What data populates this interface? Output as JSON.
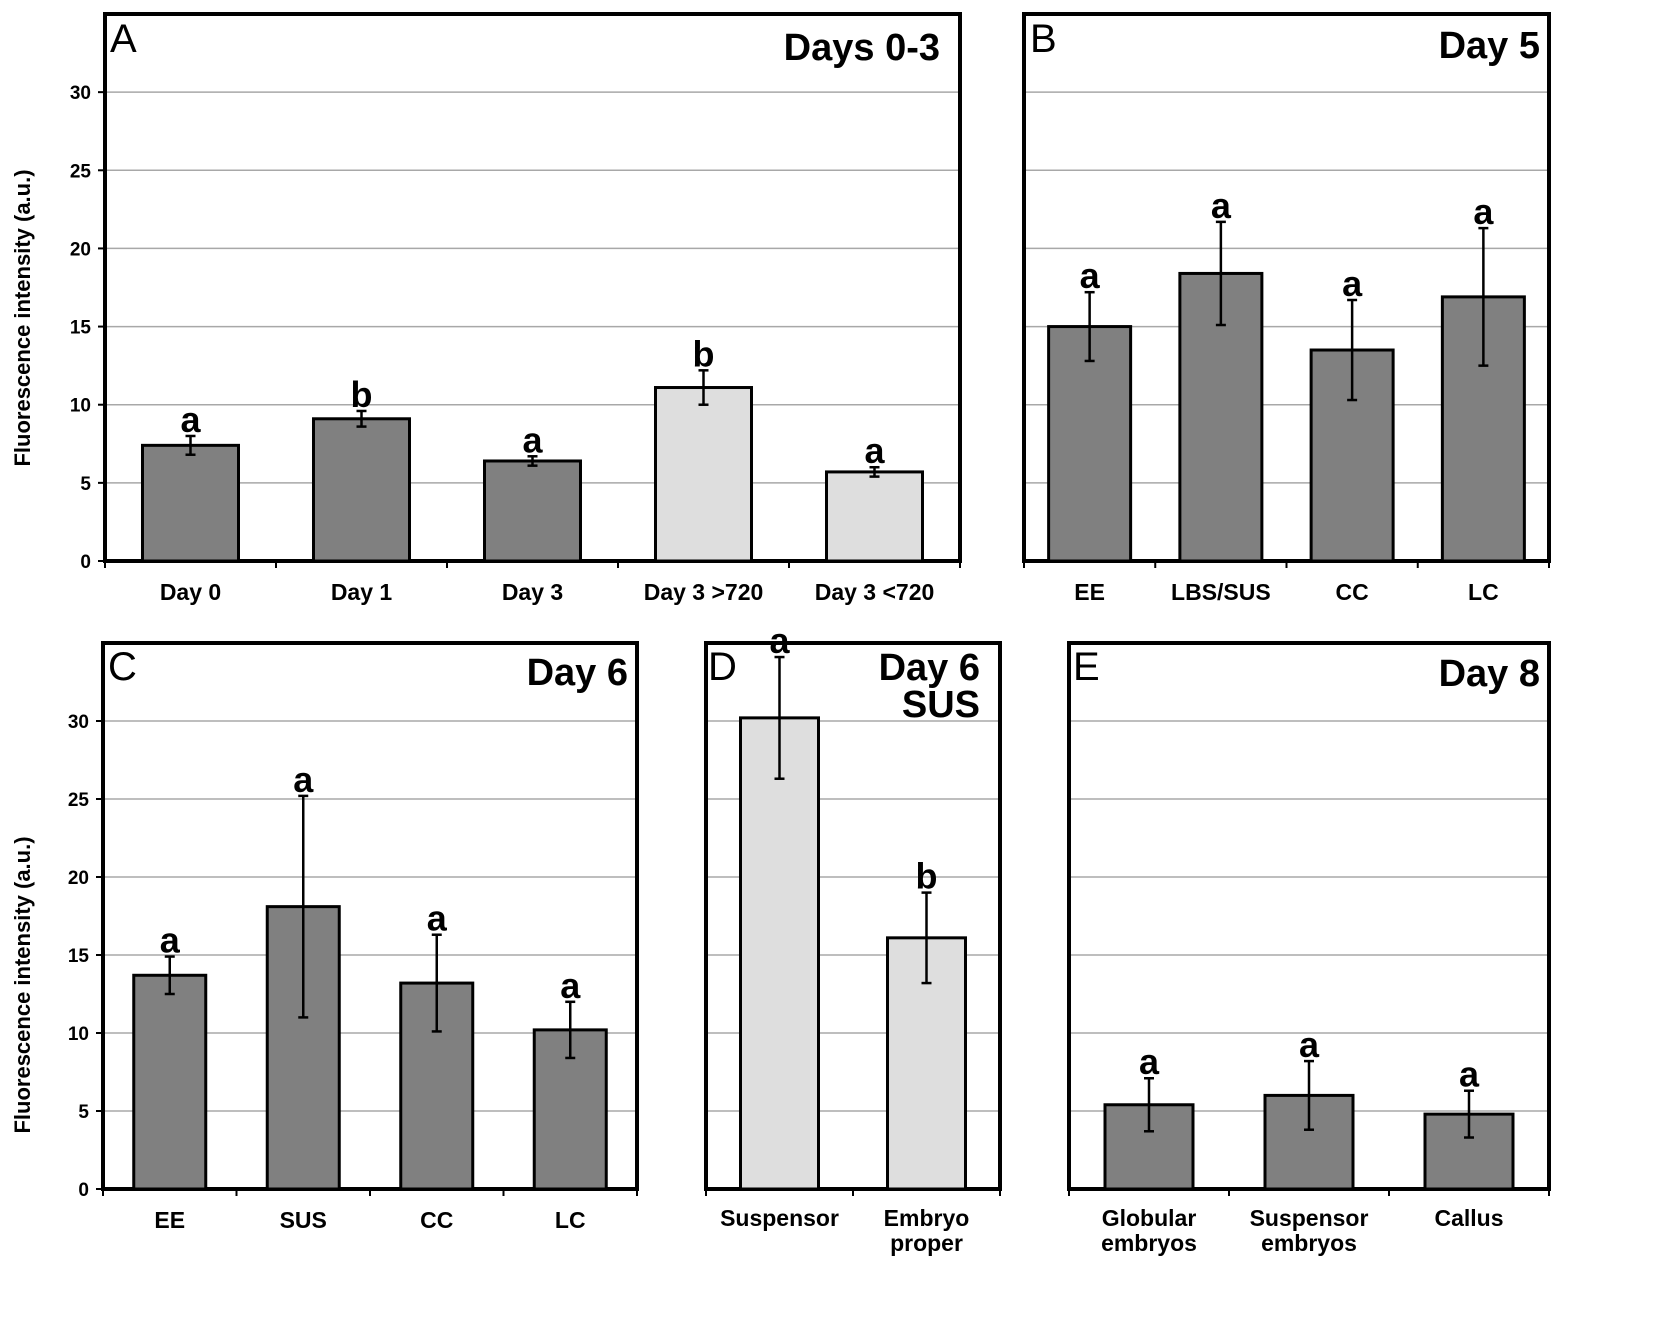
{
  "figure": {
    "y_axis_title": "Fluorescence intensity (a.u.)",
    "colors": {
      "dark_bar": "#808080",
      "light_bar": "#dedede",
      "frame": "#000000",
      "grid": "#a8a8a8"
    }
  },
  "chart_data": [
    {
      "id": "A",
      "type": "bar",
      "panel_letter": "A",
      "title": [
        "Days 0-3"
      ],
      "ylabel": "Fluorescence intensity (a.u.)",
      "ylim": [
        0,
        35
      ],
      "yticks": [
        0,
        5,
        10,
        15,
        20,
        25,
        30
      ],
      "grid": true,
      "categories": [
        [
          "Day 0"
        ],
        [
          "Day 1"
        ],
        [
          "Day 3"
        ],
        [
          "Day 3 >720"
        ],
        [
          "Day 3 <720"
        ]
      ],
      "values": [
        7.4,
        9.1,
        6.4,
        11.1,
        5.7
      ],
      "errors": [
        0.6,
        0.5,
        0.3,
        1.1,
        0.3
      ],
      "significance": [
        "a",
        "b",
        "a",
        "b",
        "a"
      ],
      "bar_colors": [
        "dark",
        "dark",
        "dark",
        "light",
        "light"
      ]
    },
    {
      "id": "B",
      "type": "bar",
      "panel_letter": "B",
      "title": [
        "Day 5"
      ],
      "ylabel": "",
      "ylim": [
        0,
        35
      ],
      "yticks": [
        0,
        5,
        10,
        15,
        20,
        25,
        30
      ],
      "grid": true,
      "categories": [
        [
          "EE"
        ],
        [
          "LBS/SUS"
        ],
        [
          "CC"
        ],
        [
          "LC"
        ]
      ],
      "values": [
        15.0,
        18.4,
        13.5,
        16.9
      ],
      "errors": [
        2.2,
        3.3,
        3.2,
        4.4
      ],
      "significance": [
        "a",
        "a",
        "a",
        "a"
      ],
      "bar_colors": [
        "dark",
        "dark",
        "dark",
        "dark"
      ]
    },
    {
      "id": "C",
      "type": "bar",
      "panel_letter": "C",
      "title": [
        "Day 6"
      ],
      "ylabel": "Fluorescence intensity (a.u.)",
      "ylim": [
        0,
        35
      ],
      "yticks": [
        0,
        5,
        10,
        15,
        20,
        25,
        30
      ],
      "grid": true,
      "categories": [
        [
          "EE"
        ],
        [
          "SUS"
        ],
        [
          "CC"
        ],
        [
          "LC"
        ]
      ],
      "values": [
        13.7,
        18.1,
        13.2,
        10.2
      ],
      "errors": [
        1.2,
        7.1,
        3.1,
        1.8
      ],
      "significance": [
        "a",
        "a",
        "a",
        "a"
      ],
      "bar_colors": [
        "dark",
        "dark",
        "dark",
        "dark"
      ]
    },
    {
      "id": "D",
      "type": "bar",
      "panel_letter": "D",
      "title": [
        "Day 6",
        "SUS"
      ],
      "ylabel": "",
      "ylim": [
        0,
        35
      ],
      "yticks": [
        0,
        5,
        10,
        15,
        20,
        25,
        30
      ],
      "grid": true,
      "categories": [
        [
          "Suspensor"
        ],
        [
          "Embryo",
          "proper"
        ]
      ],
      "values": [
        30.2,
        16.1
      ],
      "errors": [
        3.9,
        2.9
      ],
      "significance": [
        "a",
        "b"
      ],
      "bar_colors": [
        "light",
        "light"
      ]
    },
    {
      "id": "E",
      "type": "bar",
      "panel_letter": "E",
      "title": [
        "Day 8"
      ],
      "ylabel": "",
      "ylim": [
        0,
        35
      ],
      "yticks": [
        0,
        5,
        10,
        15,
        20,
        25,
        30
      ],
      "grid": true,
      "categories": [
        [
          "Globular",
          "embryos"
        ],
        [
          "Suspensor",
          "embryos"
        ],
        [
          "Callus"
        ]
      ],
      "values": [
        5.4,
        6.0,
        4.8
      ],
      "errors": [
        1.7,
        2.2,
        1.5
      ],
      "significance": [
        "a",
        "a",
        "a"
      ],
      "bar_colors": [
        "dark",
        "dark",
        "dark"
      ]
    }
  ]
}
